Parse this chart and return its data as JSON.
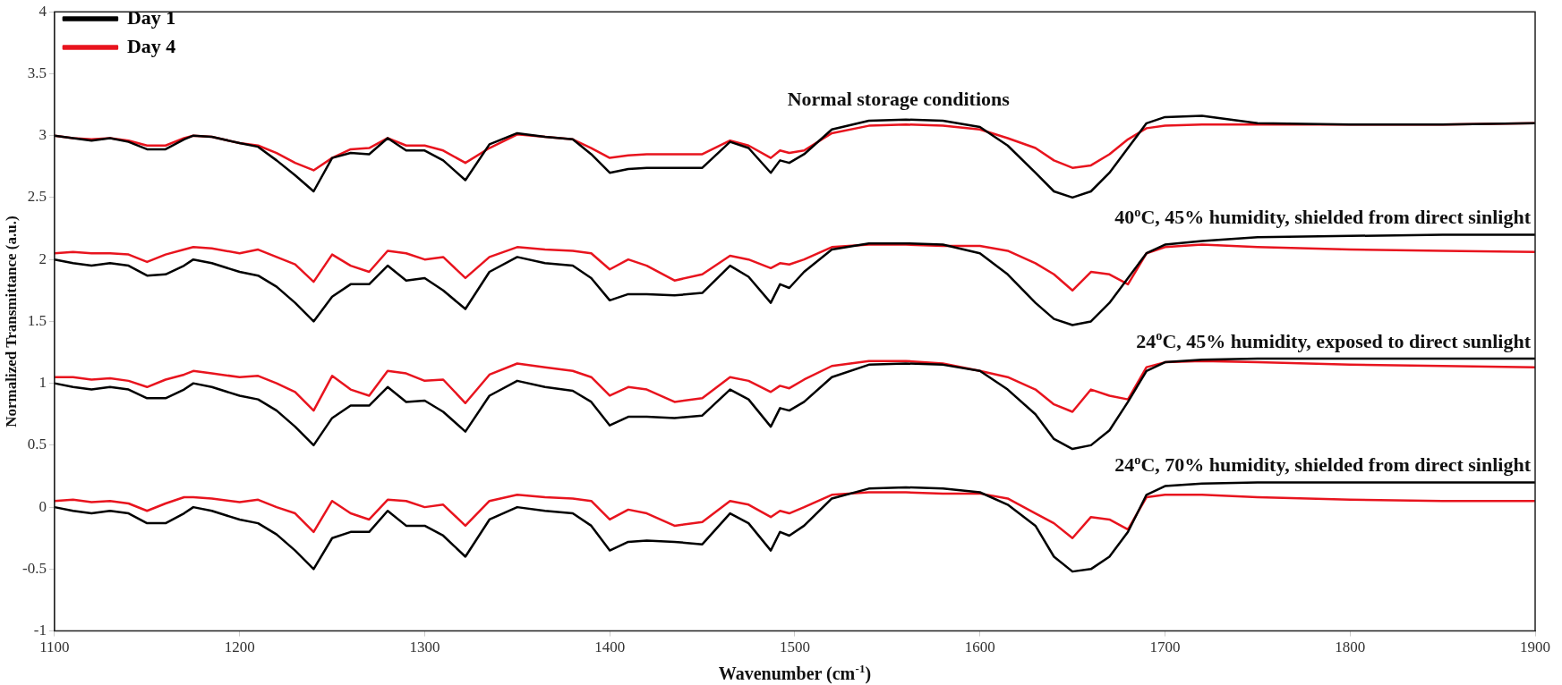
{
  "chart_data": {
    "type": "line",
    "xlabel": "Wavenumber (cm$^{-1}$)",
    "ylabel": "Normalized Transmittance (a.u.)",
    "x": [
      1100,
      1110,
      1120,
      1130,
      1140,
      1150,
      1160,
      1170,
      1175,
      1185,
      1200,
      1210,
      1220,
      1230,
      1240,
      1250,
      1260,
      1270,
      1280,
      1290,
      1300,
      1310,
      1322,
      1335,
      1350,
      1365,
      1380,
      1390,
      1400,
      1410,
      1420,
      1435,
      1450,
      1465,
      1475,
      1487,
      1492,
      1497,
      1505,
      1520,
      1540,
      1560,
      1580,
      1600,
      1615,
      1630,
      1640,
      1650,
      1660,
      1670,
      1680,
      1690,
      1700,
      1720,
      1750,
      1800,
      1850,
      1900
    ],
    "series": [
      {
        "name": "Day 1",
        "color": "#000000",
        "values": [
          3.0,
          2.98,
          2.96,
          2.98,
          2.95,
          2.89,
          2.89,
          2.97,
          3.0,
          2.99,
          2.94,
          2.91,
          2.8,
          2.68,
          2.55,
          2.82,
          2.86,
          2.85,
          2.98,
          2.88,
          2.88,
          2.8,
          2.64,
          2.93,
          3.02,
          2.99,
          2.97,
          2.85,
          2.7,
          2.73,
          2.74,
          2.74,
          2.74,
          2.95,
          2.9,
          2.7,
          2.8,
          2.78,
          2.85,
          3.05,
          3.12,
          3.13,
          3.12,
          3.07,
          2.92,
          2.7,
          2.55,
          2.5,
          2.55,
          2.7,
          2.9,
          3.1,
          3.15,
          3.16,
          3.1,
          3.09,
          3.09,
          3.1
        ]
      },
      {
        "name": "Day 4",
        "color": "#e8141e",
        "values": [
          3.0,
          2.98,
          2.97,
          2.98,
          2.96,
          2.92,
          2.92,
          2.98,
          3.0,
          2.99,
          2.94,
          2.92,
          2.86,
          2.78,
          2.72,
          2.82,
          2.89,
          2.9,
          2.98,
          2.92,
          2.92,
          2.88,
          2.78,
          2.9,
          3.01,
          2.99,
          2.97,
          2.9,
          2.82,
          2.84,
          2.85,
          2.85,
          2.85,
          2.96,
          2.92,
          2.82,
          2.88,
          2.86,
          2.88,
          3.02,
          3.08,
          3.09,
          3.08,
          3.05,
          2.98,
          2.9,
          2.8,
          2.74,
          2.76,
          2.85,
          2.97,
          3.06,
          3.08,
          3.09,
          3.09,
          3.09,
          3.09,
          3.1
        ]
      },
      {
        "color": "#000000",
        "values": [
          2.0,
          1.97,
          1.95,
          1.97,
          1.95,
          1.87,
          1.88,
          1.95,
          2.0,
          1.97,
          1.9,
          1.87,
          1.78,
          1.65,
          1.5,
          1.7,
          1.8,
          1.8,
          1.95,
          1.83,
          1.85,
          1.75,
          1.6,
          1.9,
          2.02,
          1.97,
          1.95,
          1.85,
          1.67,
          1.72,
          1.72,
          1.71,
          1.73,
          1.95,
          1.86,
          1.65,
          1.8,
          1.77,
          1.9,
          2.08,
          2.13,
          2.13,
          2.12,
          2.05,
          1.88,
          1.65,
          1.52,
          1.47,
          1.5,
          1.65,
          1.85,
          2.05,
          2.12,
          2.15,
          2.18,
          2.19,
          2.2,
          2.2
        ]
      },
      {
        "color": "#e8141e",
        "values": [
          2.05,
          2.06,
          2.05,
          2.05,
          2.04,
          1.98,
          2.04,
          2.08,
          2.1,
          2.09,
          2.05,
          2.08,
          2.02,
          1.96,
          1.82,
          2.04,
          1.95,
          1.9,
          2.07,
          2.05,
          2.0,
          2.02,
          1.85,
          2.02,
          2.1,
          2.08,
          2.07,
          2.05,
          1.92,
          2.0,
          1.95,
          1.83,
          1.88,
          2.03,
          2.0,
          1.93,
          1.97,
          1.96,
          2.0,
          2.1,
          2.12,
          2.12,
          2.11,
          2.11,
          2.07,
          1.97,
          1.88,
          1.75,
          1.9,
          1.88,
          1.8,
          2.05,
          2.1,
          2.12,
          2.1,
          2.08,
          2.07,
          2.06
        ]
      },
      {
        "color": "#000000",
        "values": [
          1.0,
          0.97,
          0.95,
          0.97,
          0.95,
          0.88,
          0.88,
          0.95,
          1.0,
          0.97,
          0.9,
          0.87,
          0.78,
          0.65,
          0.5,
          0.72,
          0.82,
          0.82,
          0.97,
          0.85,
          0.86,
          0.77,
          0.61,
          0.9,
          1.02,
          0.97,
          0.94,
          0.85,
          0.66,
          0.73,
          0.73,
          0.72,
          0.74,
          0.95,
          0.87,
          0.65,
          0.8,
          0.78,
          0.85,
          1.05,
          1.15,
          1.16,
          1.15,
          1.1,
          0.95,
          0.75,
          0.55,
          0.47,
          0.5,
          0.62,
          0.85,
          1.1,
          1.17,
          1.19,
          1.2,
          1.2,
          1.2,
          1.2
        ]
      },
      {
        "color": "#e8141e",
        "values": [
          1.05,
          1.05,
          1.03,
          1.04,
          1.02,
          0.97,
          1.03,
          1.07,
          1.1,
          1.08,
          1.05,
          1.06,
          1.0,
          0.93,
          0.78,
          1.06,
          0.95,
          0.9,
          1.1,
          1.08,
          1.02,
          1.03,
          0.84,
          1.07,
          1.16,
          1.13,
          1.1,
          1.05,
          0.9,
          0.97,
          0.95,
          0.85,
          0.88,
          1.05,
          1.02,
          0.93,
          0.98,
          0.96,
          1.03,
          1.14,
          1.18,
          1.18,
          1.16,
          1.1,
          1.05,
          0.95,
          0.83,
          0.77,
          0.95,
          0.9,
          0.87,
          1.13,
          1.17,
          1.18,
          1.17,
          1.15,
          1.14,
          1.13
        ]
      },
      {
        "color": "#000000",
        "values": [
          0.0,
          -0.03,
          -0.05,
          -0.03,
          -0.05,
          -0.13,
          -0.13,
          -0.05,
          0.0,
          -0.03,
          -0.1,
          -0.13,
          -0.22,
          -0.35,
          -0.5,
          -0.25,
          -0.2,
          -0.2,
          -0.03,
          -0.15,
          -0.15,
          -0.23,
          -0.4,
          -0.1,
          0.0,
          -0.03,
          -0.05,
          -0.15,
          -0.35,
          -0.28,
          -0.27,
          -0.28,
          -0.3,
          -0.05,
          -0.13,
          -0.35,
          -0.2,
          -0.23,
          -0.15,
          0.07,
          0.15,
          0.16,
          0.15,
          0.12,
          0.02,
          -0.15,
          -0.4,
          -0.52,
          -0.5,
          -0.4,
          -0.2,
          0.1,
          0.17,
          0.19,
          0.2,
          0.2,
          0.2,
          0.2
        ]
      },
      {
        "color": "#e8141e",
        "values": [
          0.05,
          0.06,
          0.04,
          0.05,
          0.03,
          -0.03,
          0.03,
          0.08,
          0.08,
          0.07,
          0.04,
          0.06,
          0.0,
          -0.05,
          -0.2,
          0.05,
          -0.05,
          -0.1,
          0.06,
          0.05,
          0.0,
          0.02,
          -0.15,
          0.05,
          0.1,
          0.08,
          0.07,
          0.05,
          -0.1,
          -0.02,
          -0.05,
          -0.15,
          -0.12,
          0.05,
          0.02,
          -0.08,
          -0.03,
          -0.05,
          0.0,
          0.1,
          0.12,
          0.12,
          0.11,
          0.11,
          0.07,
          -0.05,
          -0.13,
          -0.25,
          -0.08,
          -0.1,
          -0.18,
          0.08,
          0.1,
          0.1,
          0.08,
          0.06,
          0.05,
          0.05
        ]
      }
    ],
    "annotations": [
      "Normal storage conditions",
      "40$^{o}$C, 45% humidity, shielded from direct sinlight",
      "24$^{o}$C, 45% humidity, exposed to direct sunlight",
      "24$^{o}$C, 70% humidity, shielded from direct sinlight"
    ],
    "xlim": [
      1100,
      1900
    ],
    "xticks": [
      1100,
      1200,
      1300,
      1400,
      1500,
      1600,
      1700,
      1800,
      1900
    ],
    "ylim": [
      -1,
      4
    ],
    "yticks": [
      -1,
      -0.5,
      0,
      0.5,
      1,
      1.5,
      2,
      2.5,
      3,
      3.5,
      4
    ],
    "grid": false,
    "legend": "top left",
    "marker": "none",
    "line_style": "solid"
  }
}
